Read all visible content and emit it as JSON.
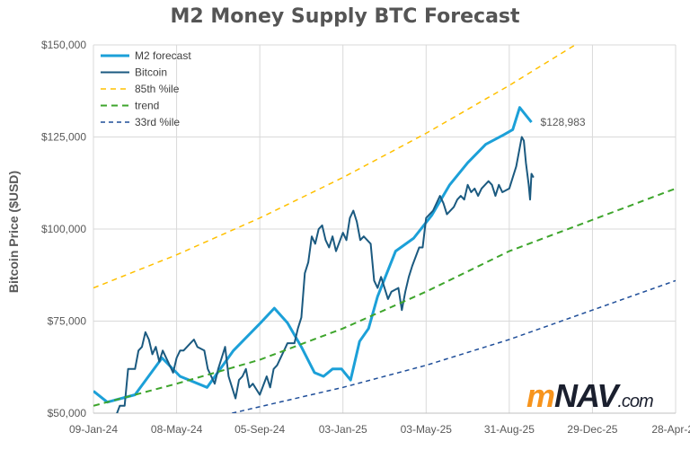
{
  "chart_data": {
    "type": "line",
    "title": "M2 Money Supply BTC Forecast",
    "xlabel": "",
    "ylabel": "Bitcoin Price ($USD)",
    "xlim_days_from_start": [
      0,
      840
    ],
    "ylim": [
      50000,
      150000
    ],
    "grid": true,
    "legend_placement": "top-left",
    "x_tick_labels": [
      "09-Jan-24",
      "08-May-24",
      "05-Sep-24",
      "03-Jan-25",
      "03-May-25",
      "31-Aug-25",
      "29-Dec-25",
      "28-Apr-26"
    ],
    "y_tick_labels": [
      "$50,000",
      "$75,000",
      "$100,000",
      "$125,000",
      "$150,000"
    ],
    "y_ticks": [
      50000,
      75000,
      100000,
      125000,
      150000
    ],
    "annotation": {
      "text": "$128,983",
      "day": 632,
      "value": 128983
    },
    "series": [
      {
        "name": "M2 forecast",
        "color": "#1ca0d8",
        "dash": "",
        "width": 3,
        "points": [
          [
            0,
            56
          ],
          [
            20,
            53
          ],
          [
            60,
            55
          ],
          [
            99,
            65
          ],
          [
            125,
            60
          ],
          [
            164,
            57
          ],
          [
            202,
            67
          ],
          [
            241,
            74.5
          ],
          [
            261,
            78.5
          ],
          [
            280,
            74.5
          ],
          [
            300,
            68
          ],
          [
            319,
            61
          ],
          [
            332,
            60
          ],
          [
            345,
            62
          ],
          [
            358,
            62
          ],
          [
            371,
            59
          ],
          [
            384,
            69.5
          ],
          [
            397,
            73
          ],
          [
            410,
            81.7
          ],
          [
            436,
            94
          ],
          [
            462,
            97.5
          ],
          [
            488,
            103.7
          ],
          [
            514,
            112
          ],
          [
            540,
            118
          ],
          [
            566,
            123
          ],
          [
            592,
            125.6
          ],
          [
            605,
            127
          ],
          [
            615,
            133
          ],
          [
            632,
            129
          ]
        ]
      },
      {
        "name": "Bitcoin",
        "color": "#1b5a80",
        "dash": "",
        "width": 2,
        "points": [
          [
            30,
            48
          ],
          [
            38,
            52
          ],
          [
            45,
            52
          ],
          [
            50,
            62
          ],
          [
            60,
            62
          ],
          [
            65,
            67
          ],
          [
            70,
            68
          ],
          [
            75,
            72
          ],
          [
            80,
            70
          ],
          [
            85,
            66
          ],
          [
            90,
            68
          ],
          [
            95,
            64
          ],
          [
            100,
            67
          ],
          [
            110,
            63
          ],
          [
            115,
            61
          ],
          [
            120,
            65
          ],
          [
            125,
            67
          ],
          [
            130,
            67
          ],
          [
            140,
            69
          ],
          [
            145,
            70
          ],
          [
            150,
            68
          ],
          [
            160,
            67
          ],
          [
            165,
            62
          ],
          [
            175,
            58
          ],
          [
            180,
            62
          ],
          [
            185,
            65
          ],
          [
            190,
            68
          ],
          [
            195,
            60
          ],
          [
            200,
            57
          ],
          [
            205,
            54
          ],
          [
            210,
            59
          ],
          [
            215,
            60
          ],
          [
            220,
            62
          ],
          [
            225,
            57
          ],
          [
            230,
            58
          ],
          [
            240,
            55
          ],
          [
            250,
            60
          ],
          [
            255,
            57
          ],
          [
            260,
            62
          ],
          [
            265,
            63
          ],
          [
            275,
            67
          ],
          [
            280,
            69
          ],
          [
            290,
            69
          ],
          [
            295,
            73
          ],
          [
            300,
            76
          ],
          [
            305,
            88
          ],
          [
            310,
            91
          ],
          [
            315,
            98
          ],
          [
            320,
            96
          ],
          [
            325,
            100
          ],
          [
            330,
            101
          ],
          [
            335,
            97
          ],
          [
            340,
            95
          ],
          [
            345,
            98
          ],
          [
            350,
            94
          ],
          [
            360,
            99
          ],
          [
            365,
            97
          ],
          [
            370,
            103
          ],
          [
            375,
            105
          ],
          [
            380,
            102
          ],
          [
            385,
            97
          ],
          [
            390,
            98
          ],
          [
            395,
            97
          ],
          [
            400,
            96
          ],
          [
            405,
            86
          ],
          [
            410,
            84
          ],
          [
            415,
            87
          ],
          [
            420,
            84
          ],
          [
            425,
            81
          ],
          [
            430,
            83
          ],
          [
            440,
            84
          ],
          [
            445,
            78
          ],
          [
            450,
            83
          ],
          [
            455,
            87
          ],
          [
            460,
            90
          ],
          [
            470,
            95
          ],
          [
            475,
            95
          ],
          [
            480,
            103
          ],
          [
            485,
            104
          ],
          [
            490,
            105
          ],
          [
            500,
            109
          ],
          [
            505,
            107
          ],
          [
            510,
            104
          ],
          [
            520,
            106
          ],
          [
            525,
            108
          ],
          [
            530,
            109
          ],
          [
            535,
            108
          ],
          [
            540,
            112
          ],
          [
            545,
            110
          ],
          [
            550,
            111
          ],
          [
            555,
            109
          ],
          [
            560,
            111
          ],
          [
            565,
            112
          ],
          [
            570,
            113
          ],
          [
            575,
            112
          ],
          [
            580,
            109
          ],
          [
            585,
            112
          ],
          [
            590,
            110
          ],
          [
            600,
            111
          ],
          [
            605,
            114
          ],
          [
            610,
            117
          ],
          [
            615,
            122
          ],
          [
            618,
            125
          ],
          [
            621,
            124
          ],
          [
            624,
            118
          ],
          [
            628,
            112
          ],
          [
            630,
            108
          ],
          [
            632,
            115
          ],
          [
            635,
            114
          ]
        ]
      },
      {
        "name": "85th %ile",
        "color": "#ffc000",
        "dash": "6,5",
        "width": 1.5,
        "points": [
          [
            0,
            84
          ],
          [
            120,
            93
          ],
          [
            240,
            103
          ],
          [
            360,
            114
          ],
          [
            480,
            126
          ],
          [
            600,
            139
          ],
          [
            695,
            150
          ],
          [
            720,
            153
          ]
        ]
      },
      {
        "name": "trend",
        "color": "#3ea52c",
        "dash": "7,5",
        "width": 2,
        "points": [
          [
            0,
            52
          ],
          [
            120,
            58
          ],
          [
            240,
            64.5
          ],
          [
            360,
            73
          ],
          [
            480,
            83
          ],
          [
            600,
            94
          ],
          [
            720,
            102.5
          ],
          [
            840,
            111
          ]
        ]
      },
      {
        "name": "33rd %ile",
        "color": "#1f4e99",
        "dash": "5,4",
        "width": 1.5,
        "points": [
          [
            200,
            50
          ],
          [
            360,
            57
          ],
          [
            480,
            63
          ],
          [
            600,
            70
          ],
          [
            720,
            78
          ],
          [
            840,
            86
          ]
        ]
      }
    ]
  },
  "logo": {
    "m": "m",
    "nav": "NAV",
    ".com": ".com"
  }
}
